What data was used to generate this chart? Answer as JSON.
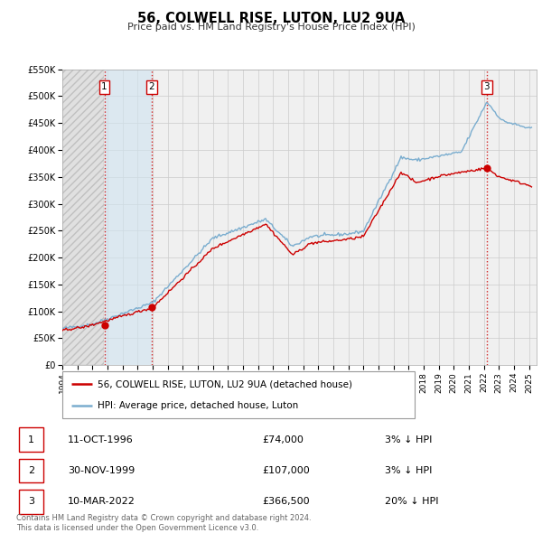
{
  "title": "56, COLWELL RISE, LUTON, LU2 9UA",
  "subtitle": "Price paid vs. HM Land Registry's House Price Index (HPI)",
  "legend_line1": "56, COLWELL RISE, LUTON, LU2 9UA (detached house)",
  "legend_line2": "HPI: Average price, detached house, Luton",
  "sale_color": "#cc0000",
  "hpi_color": "#7aadcf",
  "transactions": [
    {
      "label": "1",
      "date": 1996.79,
      "price": 74000,
      "note": "11-OCT-1996",
      "price_str": "£74,000",
      "pct": "3% ↓ HPI"
    },
    {
      "label": "2",
      "date": 1999.92,
      "price": 107000,
      "note": "30-NOV-1999",
      "price_str": "£107,000",
      "pct": "3% ↓ HPI"
    },
    {
      "label": "3",
      "date": 2022.19,
      "price": 366500,
      "note": "10-MAR-2022",
      "price_str": "£366,500",
      "pct": "20% ↓ HPI"
    }
  ],
  "ylim": [
    0,
    550000
  ],
  "yticks": [
    0,
    50000,
    100000,
    150000,
    200000,
    250000,
    300000,
    350000,
    400000,
    450000,
    500000,
    550000
  ],
  "ytick_labels": [
    "£0",
    "£50K",
    "£100K",
    "£150K",
    "£200K",
    "£250K",
    "£300K",
    "£350K",
    "£400K",
    "£450K",
    "£500K",
    "£550K"
  ],
  "xlim_start": 1994.0,
  "xlim_end": 2025.5,
  "xticks": [
    1994,
    1995,
    1996,
    1997,
    1998,
    1999,
    2000,
    2001,
    2002,
    2003,
    2004,
    2005,
    2006,
    2007,
    2008,
    2009,
    2010,
    2011,
    2012,
    2013,
    2014,
    2015,
    2016,
    2017,
    2018,
    2019,
    2020,
    2021,
    2022,
    2023,
    2024,
    2025
  ],
  "plot_bg_color": "#f0f0f0",
  "grid_color": "#cccccc",
  "shade_region": [
    1996.79,
    1999.92
  ],
  "footer_line1": "Contains HM Land Registry data © Crown copyright and database right 2024.",
  "footer_line2": "This data is licensed under the Open Government Licence v3.0."
}
